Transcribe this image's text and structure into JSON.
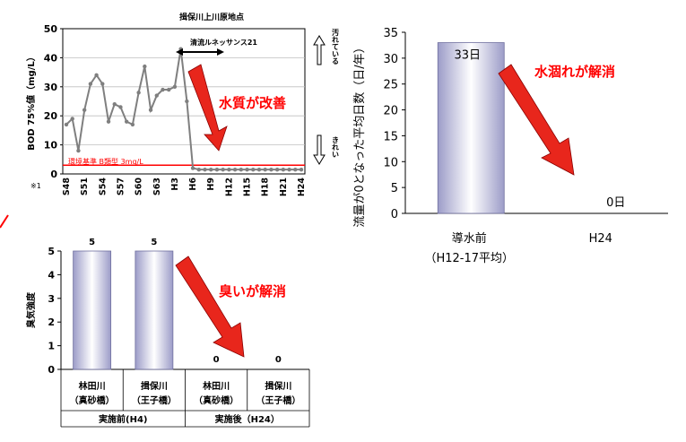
{
  "chart_data": [
    {
      "type": "line",
      "location_label": "揖保川上川原地点",
      "ylabel": "BOD 75%値（mg/L）",
      "ylim": [
        0,
        50
      ],
      "yticks": [
        0,
        10,
        20,
        30,
        40,
        50
      ],
      "footnote": "※1",
      "xtick_labels": [
        "S48",
        "S51",
        "S54",
        "S57",
        "S60",
        "S63",
        "H3",
        "H6",
        "H9",
        "H12",
        "H15",
        "H18",
        "H21",
        "H24"
      ],
      "series": [
        {
          "values": [
            17,
            19,
            8,
            22,
            31,
            34,
            31,
            18,
            24,
            23,
            18,
            17,
            28,
            37,
            22,
            27,
            29,
            29,
            30,
            43,
            25,
            2,
            1.5,
            1.5,
            1.5,
            1.5,
            1.5,
            1.5,
            1.5,
            1.5,
            1.5,
            1.5,
            1.5,
            1.5,
            1.5,
            1.5,
            1.5,
            1.5,
            1.5,
            1.5
          ]
        }
      ],
      "reference_line": {
        "value": 3,
        "label": "環境基準 B類型 3mg/L",
        "color": "#ff0000"
      },
      "annotations": {
        "period": "清流ルネッサンス21",
        "improvement": "水質が改善",
        "dirty": "汚れている",
        "clean": "きれい"
      }
    },
    {
      "type": "bar",
      "ylabel": "流量が0となった平均日数（日/年）",
      "ylim": [
        0,
        35
      ],
      "yticks": [
        0,
        5,
        10,
        15,
        20,
        25,
        30,
        35
      ],
      "categories": [
        {
          "line1": "導水前",
          "line2": "（H12-17平均）"
        },
        {
          "line1": "H24",
          "line2": ""
        }
      ],
      "values": [
        33,
        0
      ],
      "data_labels": [
        "33日",
        "0日"
      ],
      "annotation": "水涸れが解消"
    },
    {
      "type": "bar",
      "ylabel": "臭気強度",
      "ylim": [
        0,
        5
      ],
      "yticks": [
        0,
        1,
        2,
        3,
        4,
        5
      ],
      "categories": [
        {
          "line1": "林田川",
          "line2": "（真砂橋）"
        },
        {
          "line1": "揖保川",
          "line2": "（王子橋）"
        },
        {
          "line1": "林田川",
          "line2": "（真砂橋）"
        },
        {
          "line1": "揖保川",
          "line2": "（王子橋）"
        }
      ],
      "values": [
        5,
        5,
        0,
        0
      ],
      "data_labels": [
        "5",
        "5",
        "0",
        "0"
      ],
      "groups": [
        "実施前(H4)",
        "実施後（H24）"
      ],
      "annotation": "臭いが解消"
    }
  ],
  "colors": {
    "line": "#7f7f7f",
    "accent_red": "#ff0000",
    "arrow_red": "#e8261c",
    "bar_edge": "#b8b8d8",
    "bar_center": "#ffffff",
    "axis": "#000000"
  }
}
